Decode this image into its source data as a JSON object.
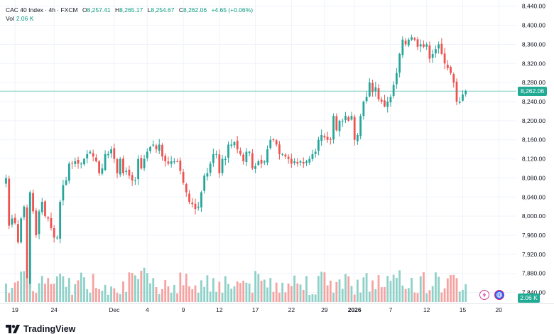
{
  "legend": {
    "symbol": "CAC 40 Index · 4h · FXCM",
    "open_label": "O",
    "open_value": "8,257.41",
    "high_label": "H",
    "high_value": "8,265.17",
    "low_label": "L",
    "low_value": "8,254.67",
    "close_label": "C",
    "close_value": "8,262.06",
    "change": "+4.65 (+0.06%)",
    "volume_label": "Vol",
    "volume_value": "2.06 K"
  },
  "price_badge": "8,262.06",
  "volume_badge": "2.06 K",
  "brand": "TradingView",
  "colors": {
    "up": "#26a69a",
    "down": "#ef5350",
    "up_vol": "#8fd1c8",
    "down_vol": "#f5a3a1",
    "badge": "#22ab94",
    "grid": "#f0f3fa"
  },
  "chart_data": {
    "type": "candlestick",
    "title": "CAC 40 Index · 4h · FXCM",
    "y_ticks": [
      "8,440.00",
      "8,400.00",
      "8,360.00",
      "8,320.00",
      "8,280.00",
      "8,240.00",
      "8,200.00",
      "8,160.00",
      "8,120.00",
      "8,080.00",
      "8,040.00",
      "8,000.00",
      "7,960.00",
      "7,920.00",
      "7,880.00",
      "7,840.00"
    ],
    "y_tick_values": [
      8440,
      8400,
      8360,
      8320,
      8280,
      8240,
      8200,
      8160,
      8120,
      8080,
      8040,
      8000,
      7960,
      7920,
      7880,
      7840
    ],
    "ylim": [
      7817,
      8453
    ],
    "x_ticks": [
      {
        "label": "19",
        "bar": 3,
        "bold": false
      },
      {
        "label": "24",
        "bar": 16,
        "bold": false
      },
      {
        "label": "Dec",
        "bar": 36,
        "bold": false
      },
      {
        "label": "4",
        "bar": 47,
        "bold": false
      },
      {
        "label": "9",
        "bar": 59,
        "bold": false
      },
      {
        "label": "12",
        "bar": 71,
        "bold": false
      },
      {
        "label": "17",
        "bar": 83,
        "bold": false
      },
      {
        "label": "22",
        "bar": 95,
        "bold": false
      },
      {
        "label": "29",
        "bar": 106,
        "bold": false
      },
      {
        "label": "2026",
        "bar": 116,
        "bold": true
      },
      {
        "label": "7",
        "bar": 128,
        "bold": false
      },
      {
        "label": "12",
        "bar": 140,
        "bold": false
      },
      {
        "label": "15",
        "bar": 152,
        "bold": false
      },
      {
        "label": "20",
        "bar": 164,
        "bold": false
      }
    ],
    "last_price": 8262.06,
    "closes": [
      8080,
      7980,
      7995,
      7985,
      7945,
      7995,
      8020,
      7850,
      8050,
      8010,
      7960,
      8010,
      8030,
      8000,
      7995,
      7975,
      7955,
      7955,
      8030,
      8065,
      8075,
      8110,
      8110,
      8115,
      8110,
      8110,
      8120,
      8130,
      8135,
      8125,
      8115,
      8090,
      8100,
      8130,
      8130,
      8140,
      8120,
      8090,
      8120,
      8090,
      8095,
      8085,
      8075,
      8075,
      8120,
      8100,
      8120,
      8135,
      8145,
      8150,
      8140,
      8150,
      8125,
      8115,
      8110,
      8115,
      8115,
      8115,
      8095,
      8070,
      8050,
      8030,
      8025,
      8015,
      8020,
      8050,
      8085,
      8090,
      8110,
      8130,
      8130,
      8090,
      8120,
      8120,
      8150,
      8150,
      8155,
      8140,
      8130,
      8115,
      8135,
      8135,
      8100,
      8105,
      8115,
      8110,
      8115,
      8140,
      8160,
      8160,
      8150,
      8130,
      8130,
      8125,
      8120,
      8110,
      8115,
      8110,
      8115,
      8110,
      8115,
      8120,
      8130,
      8135,
      8160,
      8170,
      8165,
      8160,
      8160,
      8210,
      8180,
      8200,
      8200,
      8210,
      8200,
      8210,
      8160,
      8170,
      8210,
      8240,
      8250,
      8280,
      8260,
      8270,
      8245,
      8240,
      8230,
      8240,
      8250,
      8275,
      8300,
      8340,
      8370,
      8360,
      8370,
      8375,
      8370,
      8355,
      8360,
      8355,
      8360,
      8330,
      8340,
      8350,
      8360,
      8340,
      8320,
      8310,
      8300,
      8280,
      8240,
      8240,
      8255,
      8262
    ],
    "volume_level": "2.06 K"
  }
}
